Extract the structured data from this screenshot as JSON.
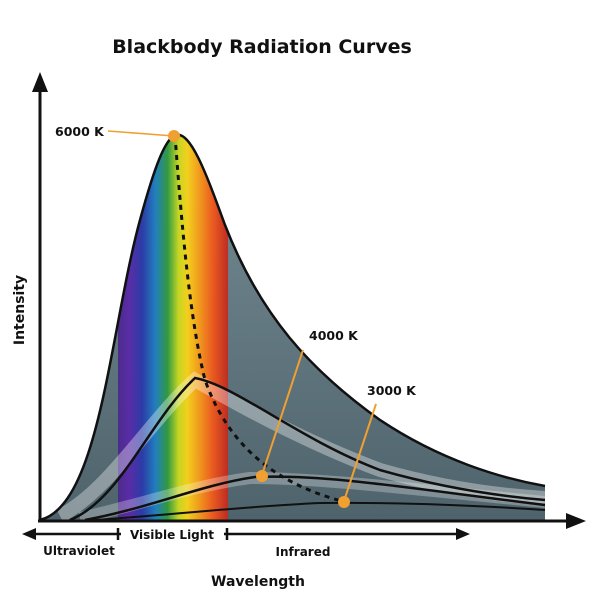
{
  "title": "Blackbody  Radiation  Curves",
  "axes": {
    "x_label": "Wavelength",
    "y_label": "Intensity"
  },
  "curves": [
    {
      "label": "6000 K"
    },
    {
      "label": "4000 K"
    },
    {
      "label": "3000 K"
    }
  ],
  "bands": {
    "ultraviolet": "Ultraviolet",
    "visible": "Visible Light",
    "infrared": "Infrared"
  },
  "colors": {
    "curve_fill": "#6f8790",
    "marker": "#f0a030",
    "curve_line": "#111111"
  }
}
